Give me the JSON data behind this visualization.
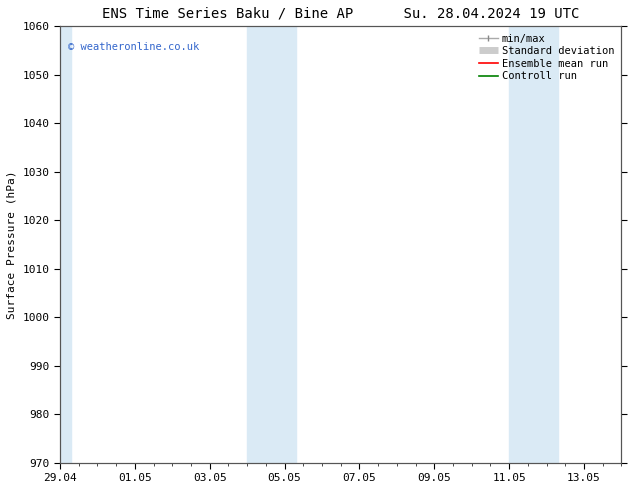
{
  "title_left": "ENS Time Series Baku / Bine AP",
  "title_right": "Su. 28.04.2024 19 UTC",
  "ylabel": "Surface Pressure (hPa)",
  "ylim": [
    970,
    1060
  ],
  "yticks": [
    970,
    980,
    990,
    1000,
    1010,
    1020,
    1030,
    1040,
    1050,
    1060
  ],
  "xlim": [
    0,
    15
  ],
  "xtick_positions": [
    0,
    2,
    4,
    6,
    8,
    10,
    12,
    14
  ],
  "xtick_labels": [
    "29.04",
    "01.05",
    "03.05",
    "05.05",
    "07.05",
    "09.05",
    "11.05",
    "13.05"
  ],
  "shaded_bands": [
    {
      "x_start": -0.1,
      "x_end": 0.3
    },
    {
      "x_start": 5.0,
      "x_end": 6.3
    },
    {
      "x_start": 12.0,
      "x_end": 13.3
    }
  ],
  "shaded_color": "#daeaf5",
  "watermark_text": "© weatheronline.co.uk",
  "watermark_color": "#3366cc",
  "background_color": "#ffffff",
  "spine_color": "#555555",
  "title_fontsize": 10,
  "axis_fontsize": 8,
  "tick_fontsize": 8,
  "legend_fontsize": 7.5
}
